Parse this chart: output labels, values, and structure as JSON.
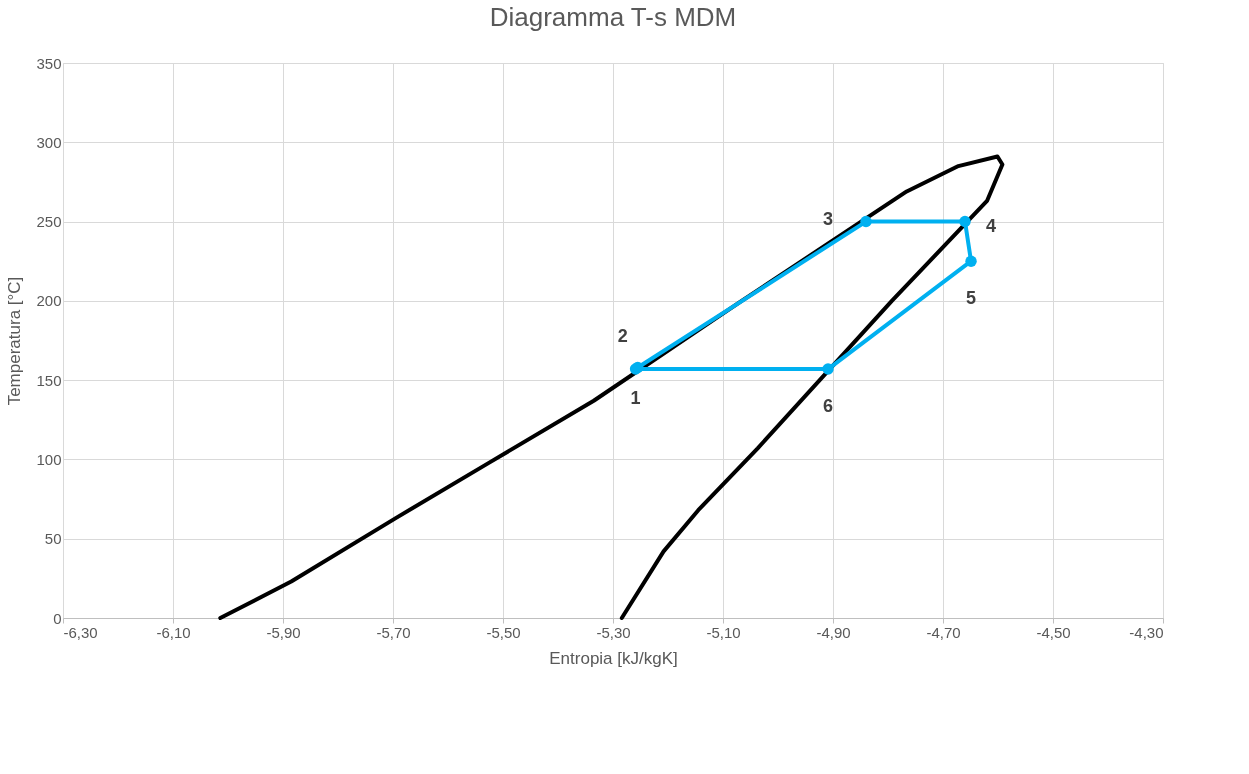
{
  "chart_data": {
    "type": "line",
    "title": "Diagramma T-s MDM",
    "xlabel": "Entropia [kJ/kgK]",
    "ylabel": "Temperatura [°C]",
    "xlim": [
      -6.3,
      -4.3
    ],
    "xticks": [
      {
        "value": -6.3,
        "label": "-6,30"
      },
      {
        "value": -6.1,
        "label": "-6,10"
      },
      {
        "value": -5.9,
        "label": "-5,90"
      },
      {
        "value": -5.7,
        "label": "-5,70"
      },
      {
        "value": -5.5,
        "label": "-5,50"
      },
      {
        "value": -5.3,
        "label": "-5,30"
      },
      {
        "value": -5.1,
        "label": "-5,10"
      },
      {
        "value": -4.9,
        "label": "-4,90"
      },
      {
        "value": -4.7,
        "label": "-4,70"
      },
      {
        "value": -4.5,
        "label": "-4,50"
      },
      {
        "value": -4.3,
        "label": "-4,30"
      }
    ],
    "ylim": [
      0,
      350
    ],
    "yticks": [
      0,
      50,
      100,
      150,
      200,
      250,
      300,
      350
    ],
    "grid": true,
    "series": [
      {
        "marker": "none",
        "color": "#000000",
        "x": [
          -6.014,
          -5.885,
          -5.695,
          -5.525,
          -5.335,
          -5.066,
          -4.766,
          -4.672,
          -4.601,
          -4.592,
          -4.62,
          -4.793,
          -5.037,
          -5.145,
          -5.208,
          -5.284
        ],
        "values": [
          0,
          23,
          63,
          98,
          137,
          200,
          269,
          285,
          291,
          286,
          263,
          200,
          107,
          68,
          42,
          0
        ]
      },
      {
        "marker": "circle",
        "color": "#00b0f0",
        "x": [
          -5.259,
          -5.255,
          -4.84,
          -4.66,
          -4.649,
          -4.909
        ],
        "values": [
          157,
          158,
          250,
          250,
          225,
          157
        ]
      },
      {
        "marker": "none",
        "color": "#00b0f0",
        "x": [
          -4.909,
          -5.259
        ],
        "values": [
          157,
          157
        ]
      }
    ],
    "annotations": [
      {
        "text": "1",
        "x": -5.259,
        "y": 157
      },
      {
        "text": "2",
        "x": -5.255,
        "y": 158
      },
      {
        "text": "3",
        "x": -4.84,
        "y": 250
      },
      {
        "text": "4",
        "x": -4.66,
        "y": 250
      },
      {
        "text": "5",
        "x": -4.649,
        "y": 225
      },
      {
        "text": "6",
        "x": -4.909,
        "y": 157
      }
    ]
  }
}
